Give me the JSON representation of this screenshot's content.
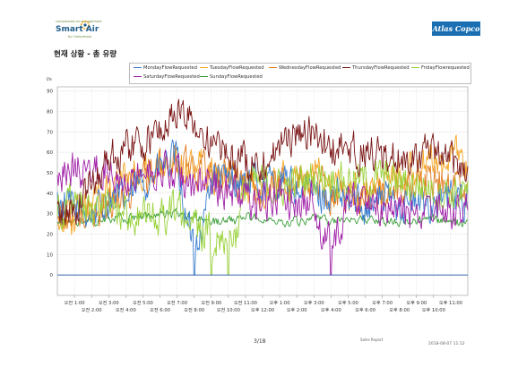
{
  "header": {
    "logo_tagline": "compressed-air management",
    "logo_name": "Smart Air",
    "logo_sub": "by Compressor",
    "brand": "Atlas Copco"
  },
  "chart_title": "현재 상황 - 총 유량",
  "footer": {
    "page": "3/18",
    "report": "Sales Report",
    "date": "2018-08-07 11:12"
  },
  "colors": {
    "Monday": "#3b7fd1",
    "Tuesday": "#f5a623",
    "Wednesday": "#e07b1e",
    "Thursday": "#7a1515",
    "Friday": "#9ad23a",
    "Saturday": "#a020a8",
    "Sunday": "#3a9d3a"
  },
  "chart_data": {
    "type": "line",
    "title": "현재 상황 - 총 유량",
    "ylabel": "l/s",
    "xlabel": "",
    "ylim": [
      -10,
      92
    ],
    "yticks": [
      0,
      10,
      20,
      30,
      40,
      50,
      60,
      70,
      80,
      90
    ],
    "grid": true,
    "legend_position": "top",
    "x_tick_labels_row1": [
      "오전 1:00",
      "오전 3:00",
      "오전 5:00",
      "오전 7:00",
      "오전 9:00",
      "오전 11:00",
      "오후 1:00",
      "오후 3:00",
      "오후 5:00",
      "오후 7:00",
      "오후 9:00",
      "오후 11:00"
    ],
    "x_tick_labels_row2": [
      "오전 2:00",
      "오전 4:00",
      "오전 6:00",
      "오전 8:00",
      "오전 10:00",
      "오후 12:00",
      "오후 2:00",
      "오후 4:00",
      "오후 6:00",
      "오후 8:00",
      "오후 10:00"
    ],
    "hours": [
      0,
      1,
      2,
      3,
      4,
      5,
      6,
      7,
      8,
      9,
      10,
      11,
      12,
      13,
      14,
      15,
      16,
      17,
      18,
      19,
      20,
      21,
      22,
      23,
      24
    ],
    "series": [
      {
        "name": "MondayFlowRequested",
        "key": "Monday",
        "values": [
          35,
          32,
          30,
          38,
          36,
          45,
          52,
          56,
          0,
          48,
          45,
          46,
          44,
          45,
          42,
          40,
          38,
          36,
          35,
          38,
          36,
          34,
          36,
          38,
          36
        ]
      },
      {
        "name": "TuesdayFlowRequested",
        "key": "Tuesday",
        "values": [
          30,
          28,
          32,
          40,
          48,
          50,
          52,
          55,
          55,
          52,
          48,
          44,
          42,
          45,
          50,
          48,
          44,
          40,
          42,
          45,
          48,
          52,
          56,
          58,
          55
        ]
      },
      {
        "name": "WednesdayFlowRequested",
        "key": "Wednesday",
        "values": [
          28,
          30,
          28,
          36,
          42,
          48,
          52,
          55,
          54,
          50,
          48,
          46,
          42,
          44,
          46,
          44,
          40,
          38,
          38,
          40,
          42,
          44,
          46,
          44,
          42
        ]
      },
      {
        "name": "ThursdayFlowRequested",
        "key": "Thursday",
        "values": [
          30,
          32,
          45,
          58,
          62,
          65,
          70,
          80,
          75,
          62,
          58,
          55,
          56,
          62,
          70,
          68,
          62,
          60,
          60,
          58,
          56,
          60,
          58,
          55,
          52
        ]
      },
      {
        "name": "FridayFlowrequested",
        "key": "Friday",
        "values": [
          35,
          34,
          30,
          34,
          30,
          28,
          28,
          32,
          26,
          0,
          0,
          44,
          45,
          42,
          45,
          48,
          48,
          46,
          46,
          48,
          45,
          44,
          42,
          40,
          40
        ]
      },
      {
        "name": "SaturdayFlowRequested",
        "key": "Saturday",
        "values": [
          50,
          52,
          50,
          52,
          50,
          50,
          52,
          48,
          42,
          44,
          42,
          38,
          36,
          38,
          36,
          36,
          0,
          38,
          36,
          34,
          32,
          30,
          30,
          32,
          30
        ]
      },
      {
        "name": "SundayFlowRequested",
        "key": "Sunday",
        "values": [
          25,
          26,
          26,
          28,
          28,
          28,
          29,
          30,
          28,
          26,
          26,
          28,
          28,
          26,
          26,
          27,
          26,
          28,
          27,
          26,
          26,
          27,
          27,
          26,
          26
        ]
      }
    ]
  }
}
